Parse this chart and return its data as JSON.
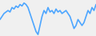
{
  "values": [
    5,
    6,
    7,
    7.5,
    8,
    7.5,
    9,
    8.5,
    9.5,
    9,
    10,
    9.5,
    10.5,
    10,
    9,
    7,
    5,
    3,
    1,
    0,
    3,
    6,
    8,
    7,
    9,
    7.5,
    8,
    7,
    8.5,
    7.5,
    8,
    7,
    7.5,
    8,
    7,
    6,
    4,
    2,
    3,
    5,
    4,
    3,
    4,
    6,
    8,
    7,
    9,
    8,
    10
  ],
  "line_color": "#4da6ff",
  "background_color": "#f0f0f0",
  "linewidth": 1.2
}
